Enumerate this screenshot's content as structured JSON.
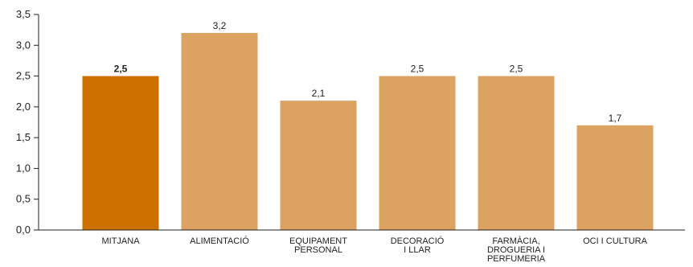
{
  "chart_data": {
    "type": "bar",
    "categories": [
      [
        "MITJANA"
      ],
      [
        "ALIMENTACIÓ"
      ],
      [
        "EQUIPAMENT",
        "PERSONAL"
      ],
      [
        "DECORACIÓ",
        "I LLAR"
      ],
      [
        "FARMÀCIA,",
        "DROGUERIA I",
        "PERFUMERIA"
      ],
      [
        "OCI I CULTURA"
      ]
    ],
    "values": [
      2.5,
      3.2,
      2.1,
      2.5,
      2.5,
      1.7
    ],
    "value_labels": [
      "2,5",
      "3,2",
      "2,1",
      "2,5",
      "2,5",
      "1,7"
    ],
    "highlight_index": 0,
    "yticks": [
      "0,0",
      "0,5",
      "1,0",
      "1,5",
      "2,0",
      "2,5",
      "3,0",
      "3,5"
    ],
    "ylim": [
      0,
      3.5
    ],
    "title": "",
    "xlabel": "",
    "ylabel": "",
    "grid": false,
    "colors": {
      "highlight": "#cc7000",
      "bar": "#dca262",
      "axis": "#222222"
    }
  }
}
